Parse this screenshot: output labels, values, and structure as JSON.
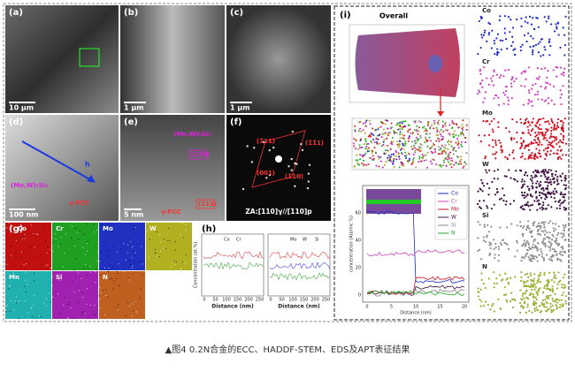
{
  "panels": {
    "a": {
      "label": "(a)",
      "scale": "10 μm"
    },
    "b": {
      "label": "(b)",
      "scale": "1 μm"
    },
    "c": {
      "label": "(c)",
      "scale": "1 μm"
    },
    "d": {
      "label": "(d)",
      "scale": "100 nm",
      "arrow": "h",
      "phase": "(Mo,W)₅Si₃",
      "matrix": "γ-FCC"
    },
    "e": {
      "label": "(e)",
      "scale": "5 nm",
      "phase": "(Mo,W)₅Si₃",
      "plane1": "(110)",
      "matrix": "γ-FCC",
      "plane2": "(1̄11)"
    },
    "f": {
      "label": "(f)",
      "spots": [
        "(1̄11)",
        "(1̄1̄1)",
        "(001)",
        "(1̄10)"
      ],
      "zone": "ZA:[110]γ//[110]p"
    },
    "g": {
      "label": "(g)",
      "elements": [
        "Co",
        "Cr",
        "Mo",
        "W",
        "Mn",
        "Si",
        "N"
      ]
    },
    "h": {
      "label": "(h)",
      "y_label": "Concentration (at.%)",
      "x_label": "Distance (nm)",
      "xticks": [
        "0",
        "50",
        "100",
        "150",
        "200",
        "250"
      ],
      "legend1": [
        "Co",
        "Cr"
      ],
      "legend2": [
        "Mo",
        "W",
        "Si"
      ]
    },
    "i": {
      "label": "(i)",
      "overall": "Overall",
      "maps": [
        "Co",
        "Cr",
        "Mo",
        "W",
        "Si",
        "N"
      ],
      "plot": {
        "legend": [
          "Co",
          "Cr",
          "Mo",
          "W",
          "Si",
          "N"
        ],
        "x_label": "Distance (nm)",
        "y_label": "concentration (Atomic %)",
        "xticks": [
          "0",
          "5",
          "10",
          "15",
          "20"
        ],
        "yticks": [
          "0",
          "20",
          "40",
          "60"
        ]
      }
    }
  },
  "caption": "▲图4 0.2N合金的ECC、HADDF-STEM、EDS及APT表征结果"
}
